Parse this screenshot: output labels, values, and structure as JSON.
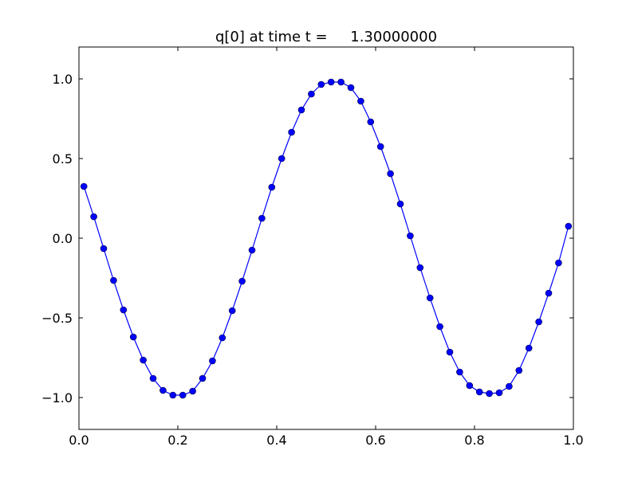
{
  "chart_data": {
    "type": "line",
    "title": "q[0] at time t =     1.30000000",
    "x": [
      0.01,
      0.03,
      0.05,
      0.07,
      0.09,
      0.11,
      0.13,
      0.15,
      0.17,
      0.19,
      0.21,
      0.23,
      0.25,
      0.27,
      0.29,
      0.31,
      0.33,
      0.35,
      0.37,
      0.39,
      0.41,
      0.43,
      0.45,
      0.47,
      0.49,
      0.51,
      0.53,
      0.55,
      0.57,
      0.59,
      0.61,
      0.63,
      0.65,
      0.67,
      0.69,
      0.71,
      0.73,
      0.75,
      0.77,
      0.79,
      0.81,
      0.83,
      0.85,
      0.87,
      0.89,
      0.91,
      0.93,
      0.95,
      0.97,
      0.99
    ],
    "values": [
      0.325,
      0.135,
      -0.065,
      -0.265,
      -0.45,
      -0.62,
      -0.765,
      -0.88,
      -0.955,
      -0.985,
      -0.985,
      -0.96,
      -0.88,
      -0.77,
      -0.625,
      -0.455,
      -0.27,
      -0.075,
      0.125,
      0.32,
      0.5,
      0.665,
      0.805,
      0.905,
      0.965,
      0.98,
      0.98,
      0.945,
      0.86,
      0.73,
      0.575,
      0.405,
      0.215,
      0.015,
      -0.185,
      -0.375,
      -0.555,
      -0.715,
      -0.84,
      -0.925,
      -0.965,
      -0.975,
      -0.97,
      -0.93,
      -0.83,
      -0.69,
      -0.525,
      -0.345,
      -0.155,
      0.075
    ],
    "color": "#0000ff",
    "xlim": [
      0,
      1
    ],
    "ylim": [
      -1.2,
      1.2
    ],
    "xticks": [
      {
        "value": 0,
        "label": "0.0"
      },
      0.2,
      0.4,
      0.6,
      0.8,
      {
        "value": 1,
        "label": "1.0"
      }
    ],
    "yticks": [
      {
        "value": -1,
        "label": "−1.0"
      },
      {
        "value": -0.5,
        "label": "−0.5"
      },
      {
        "value": 0,
        "label": "0.0"
      },
      0.5,
      {
        "value": 1,
        "label": "1.0"
      }
    ],
    "grid": false
  }
}
